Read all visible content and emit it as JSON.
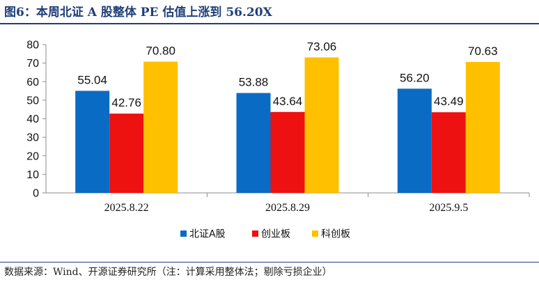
{
  "header": {
    "title": "图6：本周北证 A 股整体 PE 估值上涨到 56.20X"
  },
  "footer": {
    "source": "数据来源：Wind、开源证券研究所（注：计算采用整体法；剔除亏损企业）"
  },
  "chart_data": {
    "type": "bar",
    "categories": [
      "2025.8.22",
      "2025.8.29",
      "2025.9.5"
    ],
    "series": [
      {
        "name": "北证A股",
        "color": "#0a6bc4",
        "values": [
          55.04,
          53.88,
          56.2
        ],
        "labels": [
          "55.04",
          "53.88",
          "56.20"
        ]
      },
      {
        "name": "创业板",
        "color": "#ee1111",
        "values": [
          42.76,
          43.64,
          43.49
        ],
        "labels": [
          "42.76",
          "43.64",
          "43.49"
        ]
      },
      {
        "name": "科创板",
        "color": "#ffc000",
        "values": [
          70.8,
          73.06,
          70.63
        ],
        "labels": [
          "70.80",
          "73.06",
          "70.63"
        ]
      }
    ],
    "yticks": [
      "0",
      "10",
      "20",
      "30",
      "40",
      "50",
      "60",
      "70",
      "80"
    ],
    "ylim": [
      0,
      80
    ],
    "grid": false,
    "legend_position": "bottom"
  }
}
